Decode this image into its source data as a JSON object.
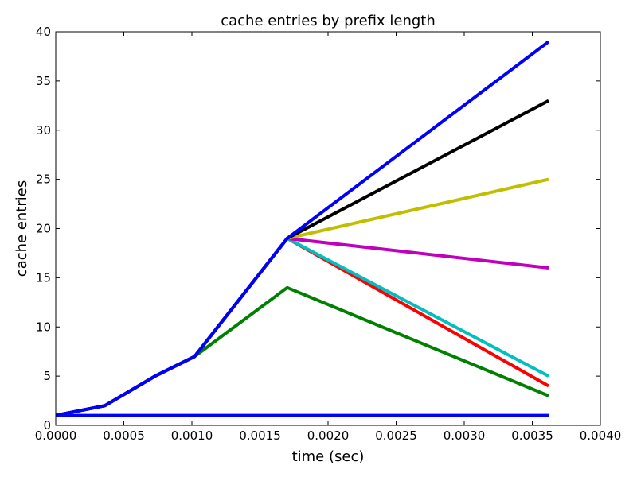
{
  "chart_data": {
    "type": "line",
    "title": "cache entries by prefix length",
    "xlabel": "time (sec)",
    "ylabel": "cache entries",
    "xlim": [
      0,
      0.004
    ],
    "ylim": [
      0,
      40
    ],
    "xticks": [
      "0.0000",
      "0.0005",
      "0.0010",
      "0.0015",
      "0.0020",
      "0.0025",
      "0.0030",
      "0.0035",
      "0.0040"
    ],
    "yticks": [
      "0",
      "5",
      "10",
      "15",
      "20",
      "25",
      "30",
      "35",
      "40"
    ],
    "grid": false,
    "legend": "none",
    "series": [
      {
        "color": "#0000ff",
        "points": [
          [
            0,
            1
          ],
          [
            0.00362,
            1
          ]
        ]
      },
      {
        "color": "#008000",
        "points": [
          [
            0,
            1
          ],
          [
            0.00036,
            2
          ],
          [
            0.00073,
            5
          ],
          [
            0.00102,
            7
          ],
          [
            0.0017,
            14
          ],
          [
            0.00362,
            3
          ]
        ]
      },
      {
        "color": "#ff0000",
        "points": [
          [
            0,
            1
          ],
          [
            0.00036,
            2
          ],
          [
            0.00073,
            5
          ],
          [
            0.00102,
            7
          ],
          [
            0.0017,
            19
          ],
          [
            0.00362,
            4
          ]
        ]
      },
      {
        "color": "#00bfbf",
        "points": [
          [
            0,
            1
          ],
          [
            0.00036,
            2
          ],
          [
            0.00073,
            5
          ],
          [
            0.00102,
            7
          ],
          [
            0.0017,
            19
          ],
          [
            0.00362,
            5
          ]
        ]
      },
      {
        "color": "#bf00bf",
        "points": [
          [
            0,
            1
          ],
          [
            0.00036,
            2
          ],
          [
            0.00073,
            5
          ],
          [
            0.00102,
            7
          ],
          [
            0.0017,
            19
          ],
          [
            0.00362,
            16
          ]
        ]
      },
      {
        "color": "#bfbf00",
        "points": [
          [
            0,
            1
          ],
          [
            0.00036,
            2
          ],
          [
            0.00073,
            5
          ],
          [
            0.00102,
            7
          ],
          [
            0.0017,
            19
          ],
          [
            0.00362,
            25
          ]
        ]
      },
      {
        "color": "#000000",
        "points": [
          [
            0,
            1
          ],
          [
            0.00036,
            2
          ],
          [
            0.00073,
            5
          ],
          [
            0.00102,
            7
          ],
          [
            0.0017,
            19
          ],
          [
            0.00362,
            33
          ]
        ]
      },
      {
        "color": "#0000ff",
        "points": [
          [
            0,
            1
          ],
          [
            0.00036,
            2
          ],
          [
            0.00073,
            5
          ],
          [
            0.00102,
            7
          ],
          [
            0.0017,
            19
          ],
          [
            0.00362,
            39
          ]
        ]
      }
    ]
  }
}
